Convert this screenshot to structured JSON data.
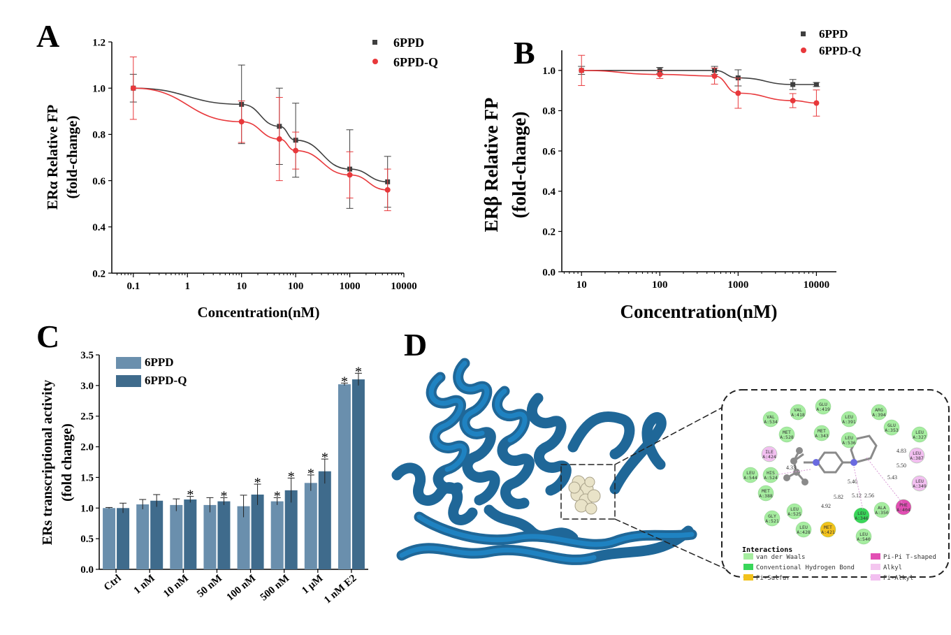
{
  "panel_labels": {
    "A": "A",
    "B": "B",
    "C": "C",
    "D": "D"
  },
  "colors": {
    "series1": "#3f3f3f",
    "series2": "#e8383b",
    "bar1": "#6a8fad",
    "bar2": "#3f6b8c",
    "protein": "#1f74b0"
  },
  "chart_data": [
    {
      "id": "A",
      "type": "line",
      "xscale": "log",
      "xlabel": "Concentration(nM)",
      "ylabel": [
        "ERα  Relative FP",
        "(fold-change)"
      ],
      "xlim": [
        0.04,
        10000
      ],
      "ylim": [
        0.2,
        1.2
      ],
      "xticks": [
        "0.1",
        "1",
        "10",
        "100",
        "1000",
        "10000"
      ],
      "yticks": [
        "0.2",
        "0.4",
        "0.6",
        "0.8",
        "1.0",
        "1.2"
      ],
      "legend_position": "top-right",
      "series": [
        {
          "name": "6PPD",
          "marker": "square",
          "x": [
            0.1,
            10,
            50,
            100,
            1000,
            5000
          ],
          "y": [
            1.0,
            0.93,
            0.835,
            0.775,
            0.65,
            0.595
          ],
          "err": [
            0.06,
            0.17,
            0.165,
            0.16,
            0.17,
            0.11
          ]
        },
        {
          "name": "6PPD-Q",
          "marker": "circle",
          "x": [
            0.1,
            10,
            50,
            100,
            1000,
            5000
          ],
          "y": [
            1.0,
            0.855,
            0.78,
            0.73,
            0.625,
            0.56
          ],
          "err": [
            0.135,
            0.09,
            0.18,
            0.08,
            0.1,
            0.09
          ]
        }
      ]
    },
    {
      "id": "B",
      "type": "line",
      "xscale": "log",
      "xlabel": "Concentration(nM)",
      "ylabel": [
        "ERβ  Relative FP",
        "(fold-change)"
      ],
      "xlim": [
        5.6,
        18000
      ],
      "ylim": [
        0.0,
        1.1
      ],
      "xticks": [
        "10",
        "100",
        "1000",
        "10000"
      ],
      "yticks": [
        "0.0",
        "0.2",
        "0.4",
        "0.6",
        "0.8",
        "1.0"
      ],
      "legend_position": "top-right",
      "series": [
        {
          "name": "6PPD",
          "marker": "square",
          "x": [
            10,
            100,
            500,
            1000,
            5000,
            10000
          ],
          "y": [
            1.0,
            1.0,
            1.0,
            0.963,
            0.93,
            0.93
          ],
          "err": [
            0.02,
            0.015,
            0.02,
            0.04,
            0.025,
            0.01
          ]
        },
        {
          "name": "6PPD-Q",
          "marker": "circle",
          "x": [
            10,
            100,
            500,
            1000,
            5000,
            10000
          ],
          "y": [
            1.0,
            0.98,
            0.972,
            0.887,
            0.85,
            0.838
          ],
          "err": [
            0.075,
            0.02,
            0.04,
            0.075,
            0.035,
            0.065
          ]
        }
      ]
    },
    {
      "id": "C",
      "type": "bar",
      "ylabel": [
        "ERs transcriptional activity",
        "(fold change)"
      ],
      "ylim": [
        0.0,
        3.5
      ],
      "yticks": [
        "0.0",
        "0.5",
        "1.0",
        "1.5",
        "2.0",
        "2.5",
        "3.0",
        "3.5"
      ],
      "categories": [
        "Ctrl",
        "1 nM",
        "10 nM",
        "50 nM",
        "100 nM",
        "500 nM",
        "1 μM",
        "1 nM E2"
      ],
      "legend_position": "top-left",
      "series": [
        {
          "name": "6PPD",
          "values": [
            1.0,
            1.06,
            1.05,
            1.05,
            1.03,
            1.11,
            1.41,
            3.02
          ],
          "err": [
            0.01,
            0.08,
            0.1,
            0.12,
            0.18,
            0.06,
            0.13,
            0.02
          ],
          "sig": [
            "",
            "",
            "",
            "",
            "",
            "*",
            "*",
            "*"
          ]
        },
        {
          "name": "6PPD-Q",
          "values": [
            1.0,
            1.12,
            1.14,
            1.11,
            1.22,
            1.29,
            1.6,
            3.1
          ],
          "err": [
            0.08,
            0.1,
            0.05,
            0.06,
            0.17,
            0.2,
            0.2,
            0.1
          ],
          "sig": [
            "",
            "",
            "*",
            "*",
            "*",
            "*",
            "*",
            "*"
          ]
        }
      ]
    }
  ],
  "docking": {
    "residues": [
      "VAL A:534",
      "VAL A:418",
      "GLU A:419",
      "LEU A:391",
      "ARG A:394",
      "GLU A:353",
      "LEU A:327",
      "MET A:528",
      "MET A:343",
      "LEU A:536",
      "ILE A:424",
      "LEU A:387",
      "LEU A:544",
      "HIS A:524",
      "LEU A:349",
      "MET A:388",
      "GLY A:521",
      "LEU A:525",
      "LEU A:428",
      "MET A:421",
      "LEU A:346",
      "ALA A:350",
      "LEU A:540",
      "PHE A:404"
    ],
    "distances": [
      "4.83",
      "5.50",
      "4.33",
      "5.40",
      "5.43",
      "5.82",
      "5.12",
      "2.56",
      "4.92"
    ],
    "legend_title": "Interactions",
    "legend": [
      {
        "label": "van der Waals",
        "color": "#a6eda0"
      },
      {
        "label": "Conventional Hydrogen Bond",
        "color": "#39d65a"
      },
      {
        "label": "Pi-Sulfur",
        "color": "#f2c21c"
      },
      {
        "label": "Pi-Pi T-shaped",
        "color": "#e24fb4"
      },
      {
        "label": "Alkyl",
        "color": "#f4c6ef"
      },
      {
        "label": "Pi-Alkyl",
        "color": "#f2bff0"
      }
    ]
  }
}
